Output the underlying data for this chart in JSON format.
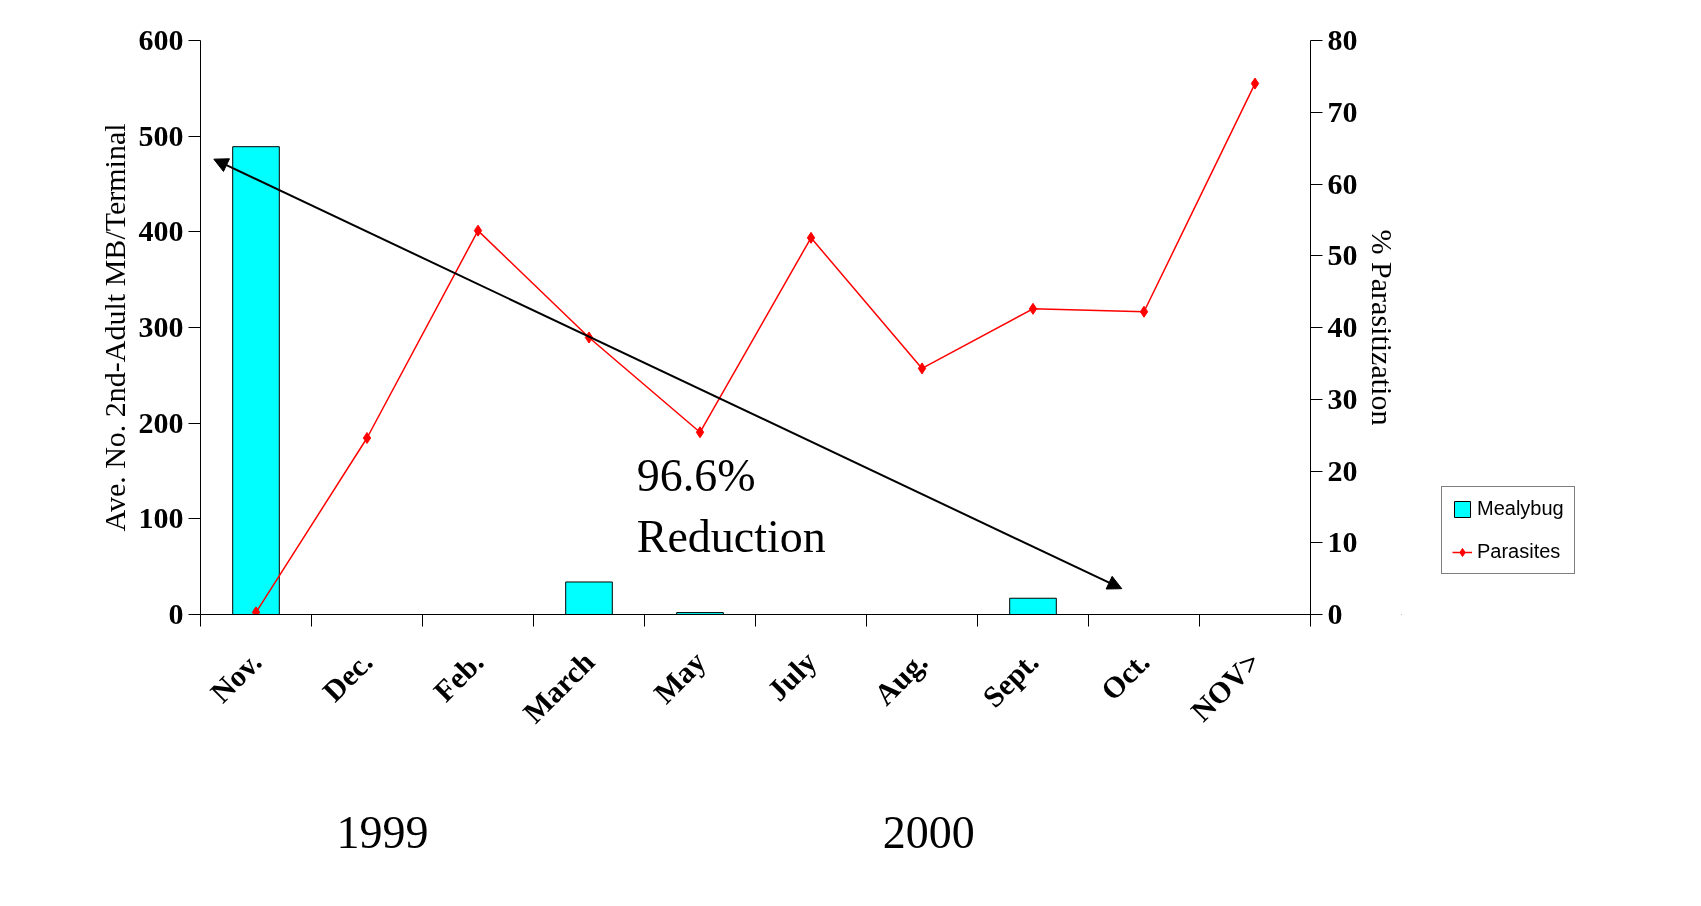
{
  "chart_data": {
    "type": "bar",
    "ylabel": "Ave. No. 2nd-Adult MB/Terminal",
    "y2label": "% Parasitization",
    "categories": [
      "Nov.",
      "Dec.",
      "Feb.",
      "March",
      "May",
      "July",
      "Aug.",
      "Sept.",
      "Oct.",
      "NOV>"
    ],
    "series": [
      {
        "name": "Mealybug",
        "color": "#00ffff",
        "values": [
          489,
          null,
          null,
          34,
          2,
          null,
          null,
          17,
          null,
          null
        ]
      },
      {
        "name": "Parasites",
        "type": "line",
        "axis": "y2",
        "color": "#ff0000",
        "marker": "diamond",
        "values": [
          0.3,
          24.6,
          53.5,
          38.6,
          25.4,
          52.5,
          34.3,
          42.6,
          42.2,
          74
        ]
      }
    ],
    "ylim": [
      0,
      600
    ],
    "yticks": [
      0,
      100,
      200,
      300,
      400,
      500,
      600
    ],
    "y2lim": [
      0,
      80
    ],
    "y2ticks": [
      0,
      10,
      20,
      30,
      40,
      50,
      60,
      70,
      80
    ],
    "grid": false,
    "legend": "right",
    "annotations": [
      "96.6%\nReduction",
      "1999",
      "2000"
    ]
  }
}
